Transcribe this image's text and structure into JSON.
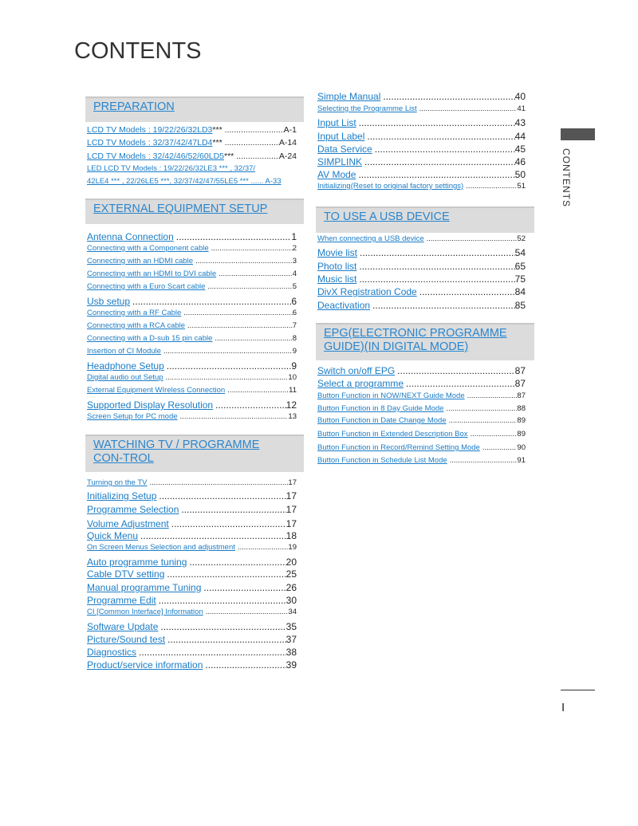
{
  "title": "CONTENTS",
  "side_tab": "CONTENTS",
  "page_number": "I",
  "colors": {
    "link": "#1a7cc6",
    "header_bg": "#dcdcdc"
  },
  "left_column": [
    {
      "type": "header",
      "label": "PREPARATION"
    },
    {
      "size": "mid",
      "label": "LCD TV Models : 19/22/26/32LD3",
      "extra": " ***",
      "page": "A-1"
    },
    {
      "size": "mid",
      "label": "LCD TV Models : 32/37/42/47LD4",
      "extra": " ***",
      "page": "A-14"
    },
    {
      "size": "mid",
      "label": "LCD TV Models : 32/42/46/52/60LD5",
      "extra": " *** ",
      "page": "A-24"
    },
    {
      "size": "small",
      "label": "LED LCD TV Models : 19/22/26/32LE3 *** , 32/37/",
      "page": ""
    },
    {
      "size": "small",
      "label": "42LE4 *** , 22/26LE5 ***, 32/37/42/47/55LE5 *** ...... A-33",
      "page": ""
    },
    {
      "type": "header",
      "label": "EXTERNAL EQUIPMENT SETUP"
    },
    {
      "size": "big",
      "label": "Antenna Connection",
      "page": "1"
    },
    {
      "size": "small",
      "label": "Connecting with a Component cable",
      "page": "2"
    },
    {
      "size": "small",
      "label": "Connecting with an HDMI cable",
      "page": "3"
    },
    {
      "size": "small",
      "label": "Connecting with an HDMI to DVI cable",
      "page": "4"
    },
    {
      "size": "small",
      "label": "Connecting with a Euro Scart cable",
      "page": "5"
    },
    {
      "size": "big",
      "label": "Usb setup",
      "page": "6"
    },
    {
      "size": "small",
      "label": "Connecting with a RF Cable",
      "page": "6"
    },
    {
      "size": "small",
      "label": "Connecting with a RCA cable",
      "page": "7"
    },
    {
      "size": "small",
      "label": "Connecting with a D-sub 15 pin cable",
      "page": "8"
    },
    {
      "size": "small",
      "label": "Insertion of CI Module",
      "page": "9"
    },
    {
      "size": "big",
      "label": "Headphone Setup",
      "page": "9"
    },
    {
      "size": "small",
      "label": "Digital audio out Setup",
      "page": "10"
    },
    {
      "size": "small",
      "label": "External Equipment WIreless Connection",
      "page": "11"
    },
    {
      "size": "big",
      "label": "Supported Display Resolution",
      "page": "12"
    },
    {
      "size": "small",
      "label": "Screen Setup for PC mode",
      "page": "13"
    },
    {
      "type": "header",
      "label": "WATCHING TV / PROGRAMME CON-TROL"
    },
    {
      "size": "small",
      "label": "Turning on the TV",
      "page": "17"
    },
    {
      "size": "big",
      "label": "Initializing Setup",
      "page": "17"
    },
    {
      "size": "big",
      "label": "Programme Selection",
      "page": "17"
    },
    {
      "size": "big",
      "label": "Volume Adjustment",
      "page": "17"
    },
    {
      "size": "big",
      "label": "Quick Menu",
      "page": "18"
    },
    {
      "size": "small",
      "label": "On Screen Menus Selection and adjustment",
      "page": "19"
    },
    {
      "size": "big",
      "label": "Auto programme tuning",
      "page": "20"
    },
    {
      "size": "big",
      "label": "Cable DTV setting",
      "page": "25"
    },
    {
      "size": "big",
      "label": "Manual programme Tuning",
      "page": "26"
    },
    {
      "size": "big",
      "label": "Programme Edit",
      "page": "30"
    },
    {
      "size": "small",
      "label": "CI [Common Interface] Information",
      "page": "34"
    },
    {
      "size": "big",
      "label": "Software Update",
      "page": "35"
    },
    {
      "size": "big",
      "label": "Picture/Sound test",
      "page": "37"
    },
    {
      "size": "big",
      "label": "Diagnostics",
      "page": "38"
    },
    {
      "size": "big",
      "label": "Product/service information",
      "page": "39"
    }
  ],
  "right_column": [
    {
      "size": "big",
      "label": "Simple Manual",
      "page": "40"
    },
    {
      "size": "small",
      "label": "Selecting the Programme List",
      "page": "41"
    },
    {
      "size": "big",
      "label": "Input List",
      "page": "43"
    },
    {
      "size": "big",
      "label": "Input Label",
      "page": "44"
    },
    {
      "size": "big",
      "label": "Data Service",
      "page": "45"
    },
    {
      "size": "big",
      "label": "SIMPLINK",
      "page": "46"
    },
    {
      "size": "big",
      "label": "AV Mode",
      "page": "50"
    },
    {
      "size": "small",
      "label": "Initializing(Reset to original factory settings)",
      "page": "51"
    },
    {
      "type": "header",
      "label": "TO USE A USB DEVICE"
    },
    {
      "size": "small",
      "label": "When connecting a USB device",
      "page": "52"
    },
    {
      "size": "big",
      "label": "Movie list",
      "page": "54"
    },
    {
      "size": "big",
      "label": "Photo list",
      "page": "65"
    },
    {
      "size": "big",
      "label": "Music list",
      "page": "75"
    },
    {
      "size": "big",
      "label": "DivX Registration Code",
      "page": "84"
    },
    {
      "size": "big",
      "label": "Deactivation",
      "page": "85"
    },
    {
      "type": "header",
      "label": "EPG(ELECTRONIC PROGRAMME GUIDE)(IN DIGITAL MODE)"
    },
    {
      "size": "big",
      "label": "Switch on/off EPG",
      "page": "87"
    },
    {
      "size": "big",
      "label": "Select a programme",
      "page": "87"
    },
    {
      "size": "small",
      "label": "Button Function in NOW/NEXT Guide Mode",
      "page": "87"
    },
    {
      "size": "small",
      "label": "Button Function in 8 Day Guide Mode",
      "page": "88"
    },
    {
      "size": "small",
      "label": "Button Function in Date Change Mode",
      "page": "89"
    },
    {
      "size": "small",
      "label": "Button Function in Extended Description Box",
      "page": "89"
    },
    {
      "size": "small",
      "label": "Button Function in Record/Remind Setting Mode",
      "page": "90"
    },
    {
      "size": "small",
      "label": "Button Function in Schedule List Mode",
      "page": "91"
    }
  ]
}
